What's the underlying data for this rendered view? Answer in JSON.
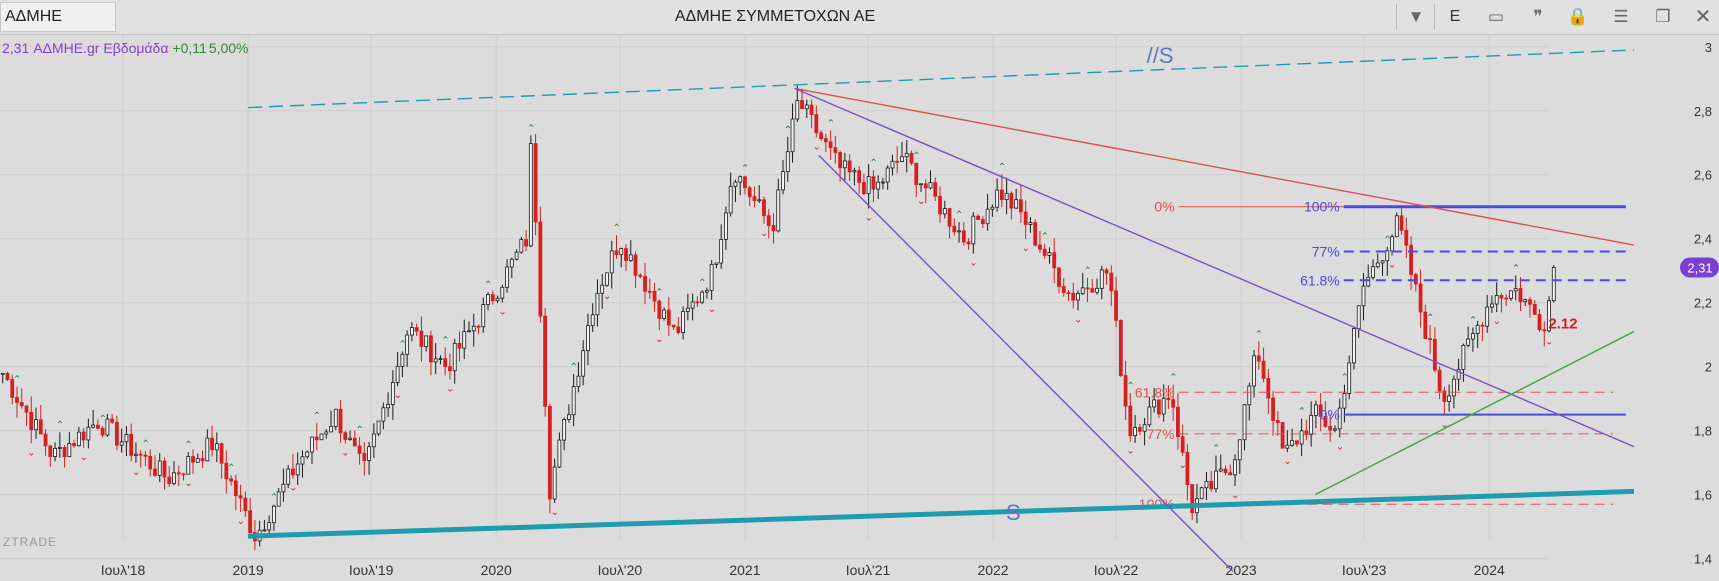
{
  "window": {
    "symbol": "ΑΔΜΗΕ",
    "title": "ΑΔΜΗΕ ΣΥΜΜΕΤΟΧΩΝ ΑΕ",
    "buttons": {
      "dropdown": "▼",
      "e_label": "E",
      "panel": "▭",
      "quote": "❞",
      "lock": "🔒",
      "menu": "☰",
      "restore": "❐",
      "close": "✕"
    }
  },
  "info": {
    "price": "2,31",
    "symbol": "ΑΔΜΗΕ.gr",
    "period": "Εβδομάδα",
    "change": "+0,11",
    "change_pct": "5,00%"
  },
  "watermark": "ZTRADE",
  "chart_data": {
    "type": "candlestick",
    "period": "weekly",
    "x_tick_labels": [
      {
        "label": "Ιουλ'18",
        "date": "2018-07-01"
      },
      {
        "label": "2019",
        "date": "2019-01-01"
      },
      {
        "label": "Ιουλ'19",
        "date": "2019-07-01"
      },
      {
        "label": "2020",
        "date": "2020-01-01"
      },
      {
        "label": "Ιουλ'20",
        "date": "2020-07-01"
      },
      {
        "label": "2021",
        "date": "2021-01-01"
      },
      {
        "label": "Ιουλ'21",
        "date": "2021-07-01"
      },
      {
        "label": "2022",
        "date": "2022-01-01"
      },
      {
        "label": "Ιουλ'22",
        "date": "2022-07-01"
      },
      {
        "label": "2023",
        "date": "2023-01-01"
      },
      {
        "label": "Ιουλ'23",
        "date": "2023-07-01"
      },
      {
        "label": "2024",
        "date": "2024-01-01"
      }
    ],
    "y_tick_labels": [
      "3",
      "2,8",
      "2,6",
      "2,4",
      "2,2",
      "2",
      "1,8",
      "1,6",
      "1,4"
    ],
    "y_ticks": [
      3,
      2.8,
      2.6,
      2.4,
      2.2,
      2.0,
      1.8,
      1.6,
      1.4
    ],
    "ylim": [
      1.33,
      3.04
    ],
    "x_range": [
      "2018-01-01",
      "2024-08-01"
    ],
    "grid": true,
    "last_price": {
      "label": "2,31",
      "value": 2.31
    },
    "swing_points": [
      {
        "date": "2018-01-05",
        "close": 1.98
      },
      {
        "date": "2018-03-20",
        "close": 1.72
      },
      {
        "date": "2018-05-25",
        "close": 1.83
      },
      {
        "date": "2018-09-05",
        "close": 1.65
      },
      {
        "date": "2018-11-10",
        "close": 1.76
      },
      {
        "date": "2019-01-12",
        "close": 1.47
      },
      {
        "date": "2019-03-15",
        "close": 1.7
      },
      {
        "date": "2019-05-10",
        "close": 1.85
      },
      {
        "date": "2019-06-20",
        "close": 1.67
      },
      {
        "date": "2019-08-25",
        "close": 2.12
      },
      {
        "date": "2019-10-20",
        "close": 2.0
      },
      {
        "date": "2019-12-15",
        "close": 2.18
      },
      {
        "date": "2020-02-15",
        "close": 2.4
      },
      {
        "date": "2020-02-22",
        "close": 2.72
      },
      {
        "date": "2020-03-20",
        "close": 1.62
      },
      {
        "date": "2020-05-25",
        "close": 2.22
      },
      {
        "date": "2020-07-01",
        "close": 2.4
      },
      {
        "date": "2020-09-20",
        "close": 2.1
      },
      {
        "date": "2020-11-15",
        "close": 2.3
      },
      {
        "date": "2020-12-15",
        "close": 2.62
      },
      {
        "date": "2021-02-10",
        "close": 2.43
      },
      {
        "date": "2021-03-20",
        "close": 2.83
      },
      {
        "date": "2021-05-20",
        "close": 2.62
      },
      {
        "date": "2021-07-10",
        "close": 2.55
      },
      {
        "date": "2021-08-20",
        "close": 2.66
      },
      {
        "date": "2021-11-20",
        "close": 2.4
      },
      {
        "date": "2022-01-10",
        "close": 2.55
      },
      {
        "date": "2022-02-10",
        "close": 2.48
      },
      {
        "date": "2022-04-25",
        "close": 2.22
      },
      {
        "date": "2022-06-20",
        "close": 2.3
      },
      {
        "date": "2022-07-20",
        "close": 1.8
      },
      {
        "date": "2022-09-20",
        "close": 1.92
      },
      {
        "date": "2022-10-20",
        "close": 1.56
      },
      {
        "date": "2022-12-20",
        "close": 1.7
      },
      {
        "date": "2023-01-25",
        "close": 2.05
      },
      {
        "date": "2023-03-05",
        "close": 1.72
      },
      {
        "date": "2023-04-20",
        "close": 1.85
      },
      {
        "date": "2023-05-20",
        "close": 1.8
      },
      {
        "date": "2023-06-30",
        "close": 2.25
      },
      {
        "date": "2023-08-20",
        "close": 2.45
      },
      {
        "date": "2023-10-25",
        "close": 1.9
      },
      {
        "date": "2024-01-05",
        "close": 2.22
      },
      {
        "date": "2024-02-10",
        "close": 2.24
      },
      {
        "date": "2024-03-20",
        "close": 2.13
      },
      {
        "date": "2024-04-10",
        "close": 2.31
      }
    ],
    "trend_lines": [
      {
        "color": "#1f9bb0",
        "style": "dashed",
        "from": [
          "2019-01-01",
          2.81
        ],
        "to": [
          "2024-08-01",
          2.99
        ],
        "label": "//S"
      },
      {
        "color": "#1f9bb0",
        "style": "thick",
        "from": [
          "2019-01-01",
          1.47
        ],
        "to": [
          "2024-08-01",
          1.61
        ],
        "label": "S"
      },
      {
        "color": "#e05050",
        "style": "solid",
        "from": [
          "2021-03-15",
          2.87
        ],
        "to": [
          "2024-08-01",
          2.38
        ]
      },
      {
        "color": "#7a4fc4",
        "style": "solid",
        "from": [
          "2021-03-15",
          2.87
        ],
        "to": [
          "2024-08-01",
          1.75
        ]
      },
      {
        "color": "#7a4fc4",
        "style": "solid",
        "from": [
          "2021-04-20",
          2.66
        ],
        "to": [
          "2022-12-20",
          1.36
        ]
      },
      {
        "color": "#3aa83a",
        "style": "solid",
        "from": [
          "2023-04-20",
          1.6
        ],
        "to": [
          "2024-08-01",
          2.11
        ]
      }
    ],
    "fib_sets": [
      {
        "color": "#e05050",
        "levels": [
          {
            "label": "0%",
            "value": 2.5
          },
          {
            "label": "61.8%",
            "value": 1.92
          },
          {
            "label": "77%",
            "value": 1.79
          },
          {
            "label": "100%",
            "value": 1.57
          }
        ]
      },
      {
        "color": "#4a4adf",
        "levels": [
          {
            "label": "100%",
            "value": 2.5
          },
          {
            "label": "77%",
            "value": 2.36
          },
          {
            "label": "61.8%",
            "value": 2.27
          },
          {
            "label": "0%",
            "value": 1.85
          }
        ]
      }
    ],
    "annotations": [
      {
        "text": "//S",
        "date": "2022-08-15",
        "value": 2.95,
        "color": "#5a78c0"
      },
      {
        "text": "S",
        "date": "2022-01-20",
        "value": 1.52,
        "color": "#5a78c0"
      },
      {
        "text": "2.12",
        "date": "2024-03-28",
        "value": 2.12,
        "color": "#d22020"
      }
    ],
    "colors": {
      "up": "#1a1a1a",
      "down": "#d62020",
      "grid": "#cfcfcf",
      "text": "#333333"
    }
  }
}
